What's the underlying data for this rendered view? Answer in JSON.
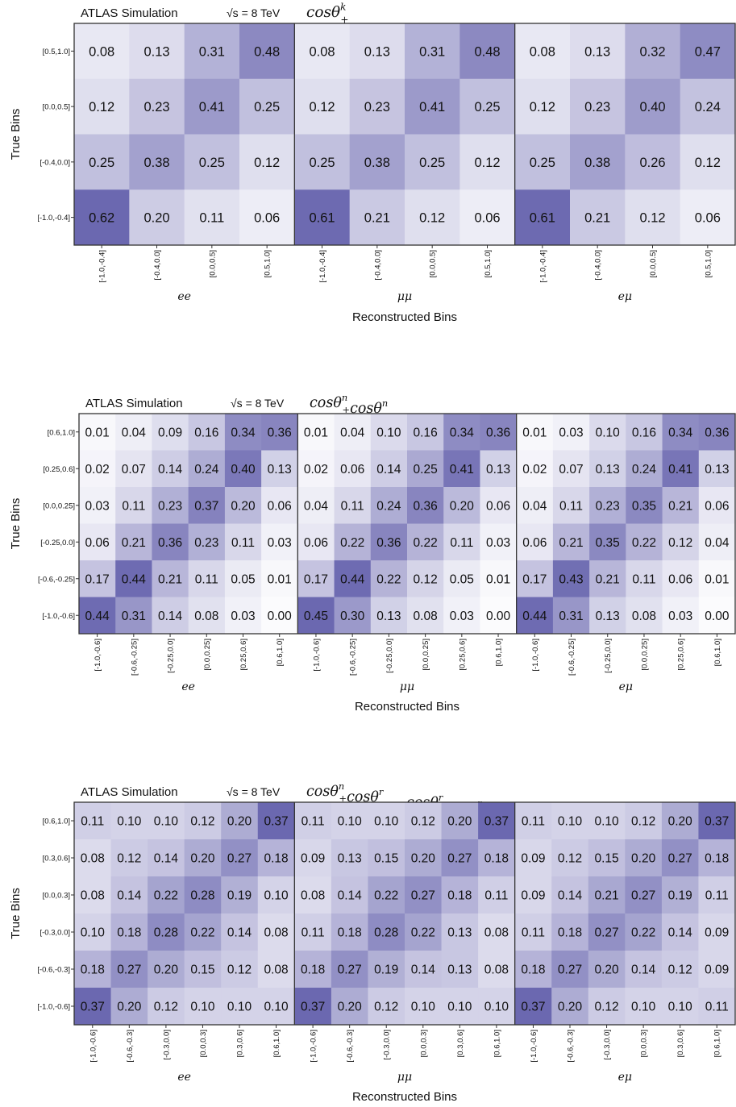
{
  "chart_data": [
    {
      "type": "heatmap",
      "header": "ATLAS Simulation",
      "energy": "√s = 8 TeV",
      "title": "cosθ₊ᵏ",
      "ylabel": "True Bins",
      "xlabel": "Reconstructed Bins",
      "bins": [
        "[-1.0,-0.4]",
        "[-0.4,0.0]",
        "[0.0,0.5]",
        "[0.5,1.0]"
      ],
      "panels": [
        {
          "channel": "ee",
          "values": [
            [
              0.08,
              0.13,
              0.31,
              0.48
            ],
            [
              0.12,
              0.23,
              0.41,
              0.25
            ],
            [
              0.25,
              0.38,
              0.25,
              0.12
            ],
            [
              0.62,
              0.2,
              0.11,
              0.06
            ]
          ]
        },
        {
          "channel": "μμ",
          "values": [
            [
              0.08,
              0.13,
              0.31,
              0.48
            ],
            [
              0.12,
              0.23,
              0.41,
              0.25
            ],
            [
              0.25,
              0.38,
              0.25,
              0.12
            ],
            [
              0.61,
              0.21,
              0.12,
              0.06
            ]
          ]
        },
        {
          "channel": "eμ",
          "values": [
            [
              0.08,
              0.13,
              0.32,
              0.47
            ],
            [
              0.12,
              0.23,
              0.4,
              0.24
            ],
            [
              0.25,
              0.38,
              0.26,
              0.12
            ],
            [
              0.61,
              0.21,
              0.12,
              0.06
            ]
          ]
        }
      ]
    },
    {
      "type": "heatmap",
      "header": "ATLAS Simulation",
      "energy": "√s = 8 TeV",
      "title": "cosθ₊ⁿcosθ₋ⁿ",
      "ylabel": "True Bins",
      "xlabel": "Reconstructed Bins",
      "bins": [
        "[-1.0,-0.6]",
        "[-0.6,-0.25]",
        "[-0.25,0.0]",
        "[0.0,0.25]",
        "[0.25,0.6]",
        "[0.6,1.0]"
      ],
      "panels": [
        {
          "channel": "ee",
          "values": [
            [
              0.01,
              0.04,
              0.09,
              0.16,
              0.34,
              0.36
            ],
            [
              0.02,
              0.07,
              0.14,
              0.24,
              0.4,
              0.13
            ],
            [
              0.03,
              0.11,
              0.23,
              0.37,
              0.2,
              0.06
            ],
            [
              0.06,
              0.21,
              0.36,
              0.23,
              0.11,
              0.03
            ],
            [
              0.17,
              0.44,
              0.21,
              0.11,
              0.05,
              0.01
            ],
            [
              0.44,
              0.31,
              0.14,
              0.08,
              0.03,
              0.0
            ]
          ]
        },
        {
          "channel": "μμ",
          "values": [
            [
              0.01,
              0.04,
              0.1,
              0.16,
              0.34,
              0.36
            ],
            [
              0.02,
              0.06,
              0.14,
              0.25,
              0.41,
              0.13
            ],
            [
              0.04,
              0.11,
              0.24,
              0.36,
              0.2,
              0.06
            ],
            [
              0.06,
              0.22,
              0.36,
              0.22,
              0.11,
              0.03
            ],
            [
              0.17,
              0.44,
              0.22,
              0.12,
              0.05,
              0.01
            ],
            [
              0.45,
              0.3,
              0.13,
              0.08,
              0.03,
              0.0
            ]
          ]
        },
        {
          "channel": "eμ",
          "values": [
            [
              0.01,
              0.03,
              0.1,
              0.16,
              0.34,
              0.36
            ],
            [
              0.02,
              0.07,
              0.13,
              0.24,
              0.41,
              0.13
            ],
            [
              0.04,
              0.11,
              0.23,
              0.35,
              0.21,
              0.06
            ],
            [
              0.06,
              0.21,
              0.35,
              0.22,
              0.12,
              0.04
            ],
            [
              0.17,
              0.43,
              0.21,
              0.11,
              0.06,
              0.01
            ],
            [
              0.44,
              0.31,
              0.13,
              0.08,
              0.03,
              0.0
            ]
          ]
        }
      ]
    },
    {
      "type": "heatmap",
      "header": "ATLAS Simulation",
      "energy": "√s = 8 TeV",
      "title": "cosθ₊ⁿcosθ₋ʳ − cosθ₊ʳcosθ₋ⁿ",
      "ylabel": "True Bins",
      "xlabel": "Reconstructed Bins",
      "bins": [
        "[-1.0,-0.6]",
        "[-0.6,-0.3]",
        "[-0.3,0.0]",
        "[0.0,0.3]",
        "[0.3,0.6]",
        "[0.6,1.0]"
      ],
      "panels": [
        {
          "channel": "ee",
          "values": [
            [
              0.11,
              0.1,
              0.1,
              0.12,
              0.2,
              0.37
            ],
            [
              0.08,
              0.12,
              0.14,
              0.2,
              0.27,
              0.18
            ],
            [
              0.08,
              0.14,
              0.22,
              0.28,
              0.19,
              0.1
            ],
            [
              0.1,
              0.18,
              0.28,
              0.22,
              0.14,
              0.08
            ],
            [
              0.18,
              0.27,
              0.2,
              0.15,
              0.12,
              0.08
            ],
            [
              0.37,
              0.2,
              0.12,
              0.1,
              0.1,
              0.1
            ]
          ]
        },
        {
          "channel": "μμ",
          "values": [
            [
              0.11,
              0.1,
              0.1,
              0.12,
              0.2,
              0.37
            ],
            [
              0.09,
              0.13,
              0.15,
              0.2,
              0.27,
              0.18
            ],
            [
              0.08,
              0.14,
              0.22,
              0.27,
              0.18,
              0.11
            ],
            [
              0.11,
              0.18,
              0.28,
              0.22,
              0.13,
              0.08
            ],
            [
              0.18,
              0.27,
              0.19,
              0.14,
              0.13,
              0.08
            ],
            [
              0.37,
              0.2,
              0.12,
              0.1,
              0.1,
              0.1
            ]
          ]
        },
        {
          "channel": "eμ",
          "values": [
            [
              0.11,
              0.1,
              0.1,
              0.12,
              0.2,
              0.37
            ],
            [
              0.09,
              0.12,
              0.15,
              0.2,
              0.27,
              0.18
            ],
            [
              0.09,
              0.14,
              0.21,
              0.27,
              0.19,
              0.11
            ],
            [
              0.11,
              0.18,
              0.27,
              0.22,
              0.14,
              0.09
            ],
            [
              0.18,
              0.27,
              0.2,
              0.14,
              0.12,
              0.09
            ],
            [
              0.37,
              0.2,
              0.12,
              0.1,
              0.1,
              0.11
            ]
          ]
        }
      ]
    }
  ],
  "colors": {
    "cell_low": "#fbfbfd",
    "cell_high": "#6b68b0",
    "frame": "#333333"
  }
}
